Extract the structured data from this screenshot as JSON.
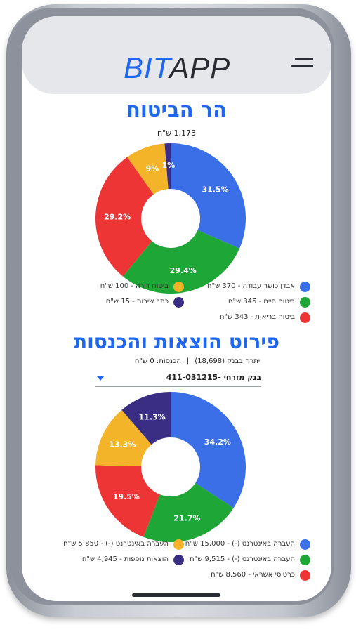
{
  "header": {
    "logo_primary": "BIT",
    "logo_secondary": "APP",
    "menu_icon": "hamburger-menu-icon"
  },
  "insurance": {
    "title": "הר הביטוח",
    "total": "1,173 ש\"ח",
    "legend": [
      {
        "label": "אבדן כושר עבודה - 370 ש\"ח",
        "color": "#3b6fe8"
      },
      {
        "label": "ביטוח חיים - 345 ש\"ח",
        "color": "#1ea637"
      },
      {
        "label": "ביטוח בריאות - 343 ש\"ח",
        "color": "#ee3535"
      },
      {
        "label": "ביטוח דירה - 100 ש\"ח",
        "color": "#f4b42a"
      },
      {
        "label": "כתב שירות - 15 ש\"ח",
        "color": "#3a2d84"
      }
    ]
  },
  "expenses": {
    "title": "פירוט הוצאות והכנסות",
    "balance": "יתרה בבנק (18,698)",
    "separator": "|",
    "income": "הכנסות: 0 ש\"ח",
    "bank_account": "בנק מזרחי -411-031215",
    "legend": [
      {
        "label": "העברה באינטרנט (-) - 15,000 ש\"ח",
        "color": "#3b6fe8"
      },
      {
        "label": "העברה באינטרנט (-) - 9,515 ש\"ח",
        "color": "#1ea637"
      },
      {
        "label": "כרטיסי אשראי - 8,560 ש\"ח",
        "color": "#ee3535"
      },
      {
        "label": "העברה באינטרנט (-) - 5,850 ש\"ח",
        "color": "#f4b42a"
      },
      {
        "label": "הוצאות נוספות - 4,945 ש\"ח",
        "color": "#3a2d84"
      }
    ]
  },
  "chart_data": [
    {
      "type": "pie",
      "title": "הר הביטוח",
      "categories": [
        "אבדן כושר עבודה",
        "ביטוח חיים",
        "ביטוח בריאות",
        "ביטוח דירה",
        "כתב שירות"
      ],
      "values": [
        370,
        345,
        343,
        100,
        15
      ],
      "percent_labels": [
        "31.5%",
        "29.4%",
        "29.2%",
        "9%",
        "1%"
      ],
      "colors": [
        "#3b6fe8",
        "#1ea637",
        "#ee3535",
        "#f4b42a",
        "#3a2d84"
      ]
    },
    {
      "type": "pie",
      "title": "פירוט הוצאות והכנסות",
      "categories": [
        "העברה באינטרנט (-)",
        "העברה באינטרנט (-)",
        "כרטיסי אשראי",
        "העברה באינטרנט (-)",
        "הוצאות נוספות"
      ],
      "values": [
        15000,
        9515,
        8560,
        5850,
        4945
      ],
      "percent_labels": [
        "34.2%",
        "21.7%",
        "19.5%",
        "13.3%",
        "11.3%"
      ],
      "colors": [
        "#3b6fe8",
        "#1ea637",
        "#ee3535",
        "#f4b42a",
        "#3a2d84"
      ]
    }
  ]
}
